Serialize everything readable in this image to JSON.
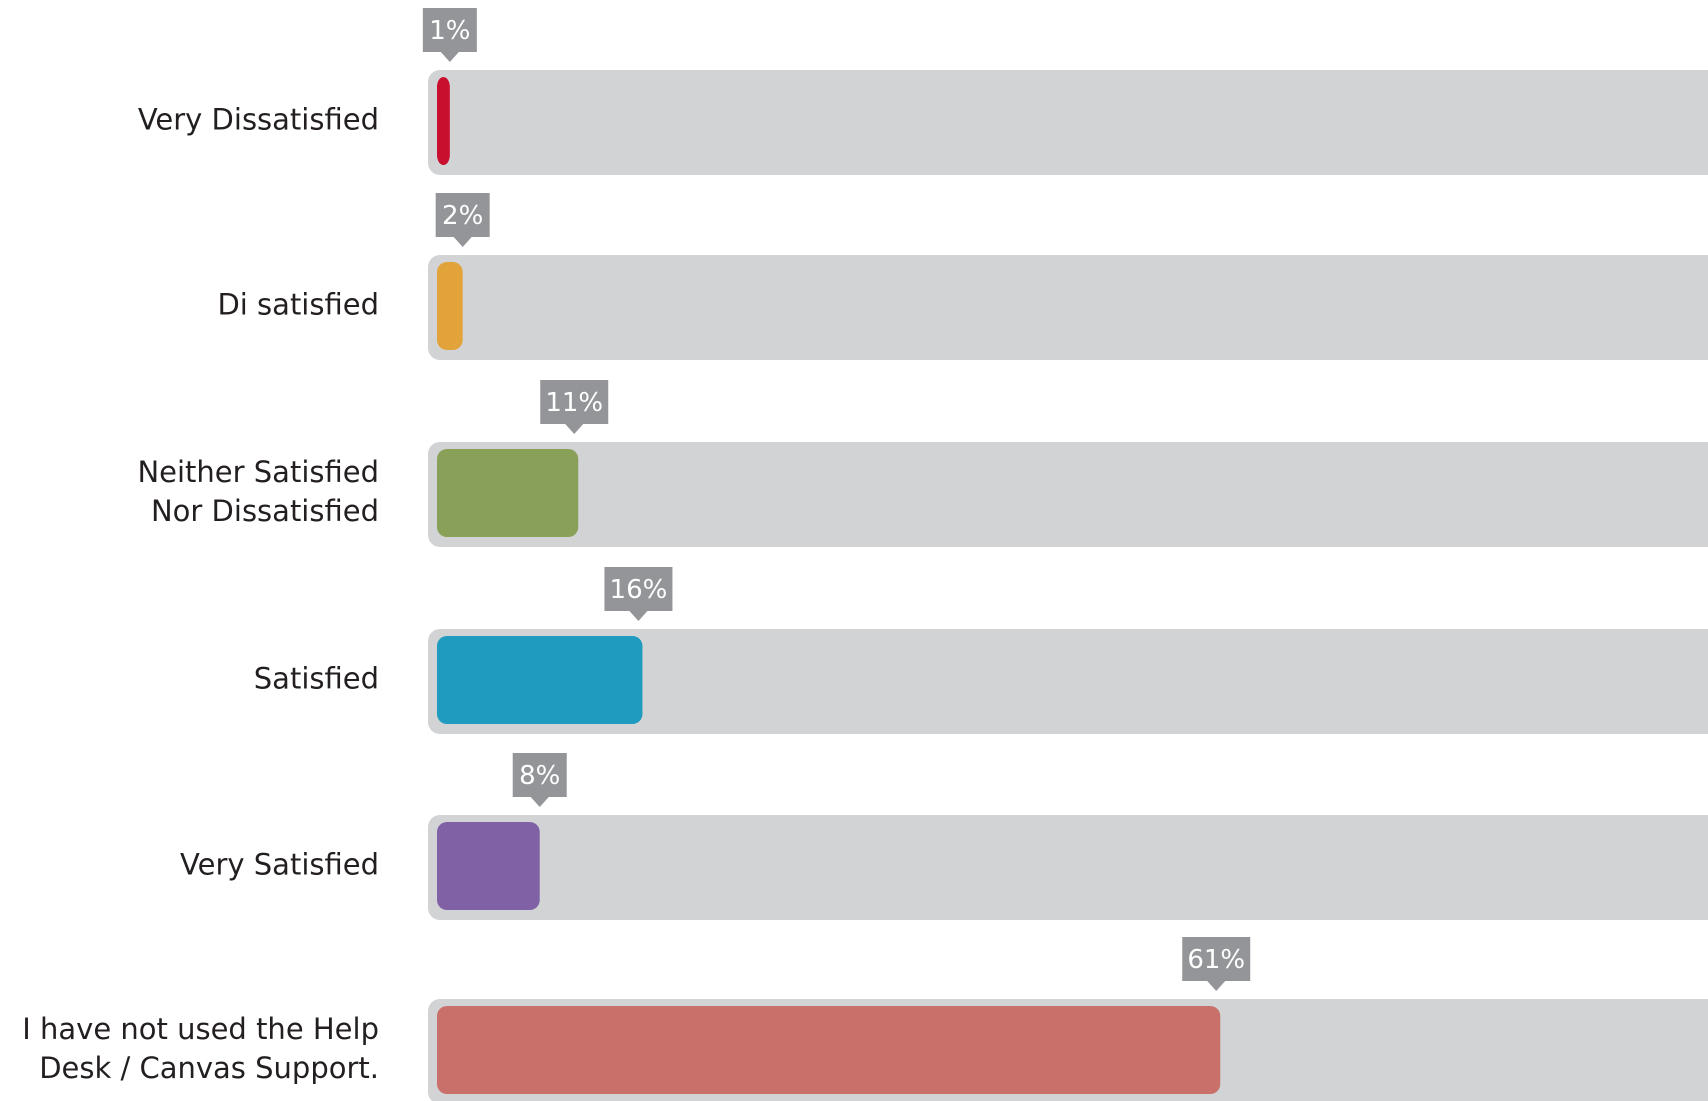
{
  "chart_data": {
    "type": "bar",
    "orientation": "horizontal",
    "title": "",
    "xlabel": "",
    "ylabel": "",
    "xlim": [
      0,
      100
    ],
    "unit": "%",
    "grid": false,
    "legend": "none",
    "track_color": "#d1d3d4",
    "callout_color": "#939598",
    "categories": [
      "Very Dissatisfied",
      "Di satisfied",
      "Neither Satisfied Nor Dissatisfied",
      "Satisfied",
      "Very Satisfied",
      "I have not used the Help Desk / Canvas Support."
    ],
    "values": [
      1,
      2,
      11,
      16,
      8,
      61
    ],
    "value_labels": [
      "1%",
      "2%",
      "11%",
      "16%",
      "8%",
      "61%"
    ],
    "category_lines": [
      [
        "Very Dissatisfied"
      ],
      [
        "Di satisfied"
      ],
      [
        "Neither Satisfied",
        "Nor Dissatisfied"
      ],
      [
        "Satisfied"
      ],
      [
        "Very Satisfied"
      ],
      [
        "I have not used the Help",
        "Desk / Canvas Support."
      ]
    ],
    "colors": [
      "#c8102e",
      "#e3a33b",
      "#88a058",
      "#1f9bc0",
      "#8061a5",
      "#c9706a"
    ]
  }
}
